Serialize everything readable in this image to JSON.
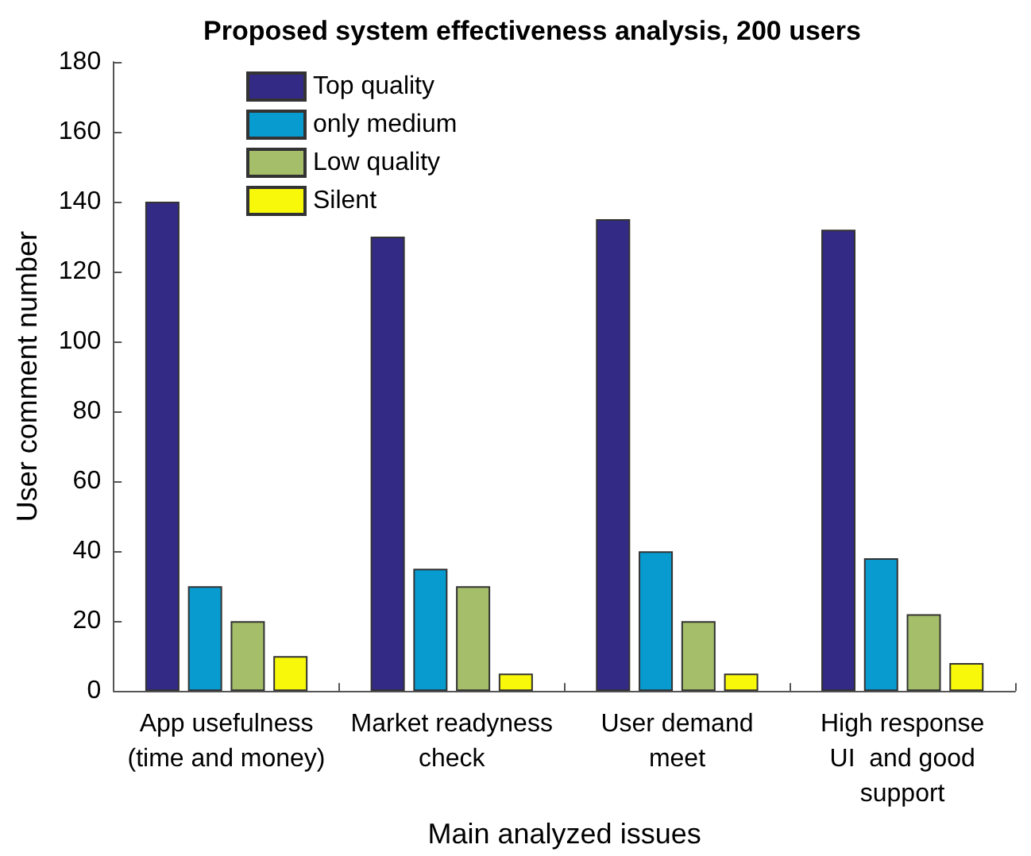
{
  "chart_data": {
    "type": "bar",
    "title": "Proposed system effectiveness analysis, 200 users",
    "xlabel": "Main analyzed issues",
    "ylabel": "User comment number",
    "categories": [
      "App usefulness\n(time and money)",
      "Market readyness\ncheck",
      "User demand\nmeet",
      "High response\nUI  and good\nsupport"
    ],
    "series": [
      {
        "name": "Top quality",
        "color": "#332a85",
        "values": [
          140,
          130,
          135,
          132
        ]
      },
      {
        "name": "only medium",
        "color": "#079bd0",
        "values": [
          30,
          35,
          40,
          38
        ]
      },
      {
        "name": "Low quality",
        "color": "#a5be6a",
        "values": [
          20,
          30,
          20,
          22
        ]
      },
      {
        "name": "Silent",
        "color": "#f8f80a",
        "values": [
          10,
          5,
          5,
          8
        ]
      }
    ],
    "ylim": [
      0,
      180
    ],
    "yticks": [
      0,
      20,
      40,
      60,
      80,
      100,
      120,
      140,
      160,
      180
    ],
    "grid": false,
    "legend": "top left"
  }
}
